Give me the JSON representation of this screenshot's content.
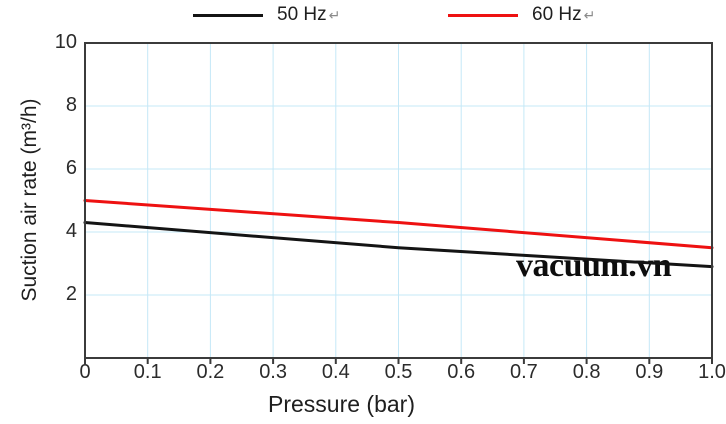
{
  "figure": {
    "background": "#ffffff"
  },
  "legend": {
    "return_mark": "↵"
  },
  "chart_data": {
    "type": "line",
    "title": "",
    "xlabel": "Pressure (bar)",
    "ylabel": "Suction air rate (m³/h)",
    "xlim": [
      0,
      1
    ],
    "ylim": [
      0,
      10
    ],
    "x_ticks": {
      "values": [
        0,
        0.1,
        0.2,
        0.3,
        0.4,
        0.5,
        0.6,
        0.7,
        0.8,
        0.9,
        1.0
      ],
      "labels": [
        "0",
        "0.1",
        "0.2",
        "0.3",
        "0.4",
        "0.5",
        "0.6",
        "0.7",
        "0.8",
        "0.9",
        "1.0"
      ]
    },
    "y_ticks": {
      "values": [
        10,
        8,
        6,
        4,
        2
      ],
      "labels": [
        "10",
        "8",
        "6",
        "4",
        "2"
      ]
    },
    "grid": {
      "vertical_step": 0.1,
      "horizontal_step": 2,
      "color": "#c5e8f7",
      "visible": true
    },
    "axis_color": "#3b3b3b",
    "legend_position": "top",
    "series": [
      {
        "name": "50 Hz",
        "color": "#141414",
        "x": [
          0,
          0.5,
          1.0
        ],
        "values": [
          4.3,
          3.5,
          2.9
        ]
      },
      {
        "name": "60 Hz",
        "color": "#ee1111",
        "x": [
          0,
          0.5,
          1.0
        ],
        "values": [
          5.0,
          4.3,
          3.5
        ]
      }
    ],
    "watermark": "vacuum.vn"
  }
}
